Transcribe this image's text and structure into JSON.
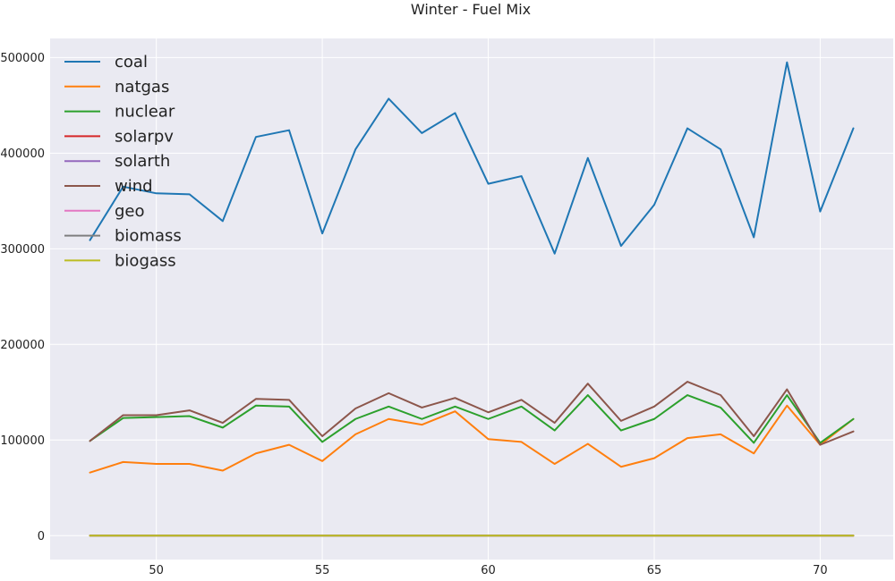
{
  "chart_data": {
    "type": "line",
    "title": "Winter - Fuel Mix",
    "xlabel": "",
    "ylabel": "",
    "xlim": [
      46.8,
      72.2
    ],
    "ylim": [
      -25000,
      520000
    ],
    "xticks": [
      50,
      55,
      60,
      65,
      70
    ],
    "yticks": [
      0,
      100000,
      200000,
      300000,
      400000,
      500000
    ],
    "grid": true,
    "legend_position": "top-left",
    "x": [
      48,
      49,
      50,
      51,
      52,
      53,
      54,
      55,
      56,
      57,
      58,
      59,
      60,
      61,
      62,
      63,
      64,
      65,
      66,
      67,
      68,
      69,
      70,
      71
    ],
    "series": [
      {
        "name": "coal",
        "color": "#1f77b4",
        "values": [
          309000,
          365000,
          358000,
          357000,
          329000,
          417000,
          424000,
          316000,
          404000,
          457000,
          421000,
          442000,
          368000,
          376000,
          295000,
          395000,
          303000,
          346000,
          426000,
          404000,
          312000,
          495000,
          339000,
          426000
        ]
      },
      {
        "name": "natgas",
        "color": "#ff7f0e",
        "values": [
          66000,
          77000,
          75000,
          75000,
          68000,
          86000,
          95000,
          78000,
          106000,
          122000,
          116000,
          130000,
          101000,
          98000,
          75000,
          96000,
          72000,
          81000,
          102000,
          106000,
          86000,
          136000,
          95000,
          122000
        ]
      },
      {
        "name": "nuclear",
        "color": "#2ca02c",
        "values": [
          99000,
          123000,
          124000,
          125000,
          113000,
          136000,
          135000,
          98000,
          122000,
          135000,
          122000,
          135000,
          122000,
          135000,
          110000,
          147000,
          110000,
          122000,
          147000,
          134000,
          97000,
          147000,
          97000,
          122000
        ]
      },
      {
        "name": "solarpv",
        "color": "#d62728",
        "values": [
          0,
          0,
          0,
          0,
          0,
          0,
          0,
          0,
          0,
          0,
          0,
          0,
          0,
          0,
          0,
          0,
          0,
          0,
          0,
          0,
          0,
          0,
          0,
          0
        ]
      },
      {
        "name": "solarth",
        "color": "#9467bd",
        "values": [
          0,
          0,
          0,
          0,
          0,
          0,
          0,
          0,
          0,
          0,
          0,
          0,
          0,
          0,
          0,
          0,
          0,
          0,
          0,
          0,
          0,
          0,
          0,
          0
        ]
      },
      {
        "name": "wind",
        "color": "#8c564b",
        "values": [
          99000,
          126000,
          126000,
          131000,
          118000,
          143000,
          142000,
          104000,
          133000,
          149000,
          134000,
          144000,
          129000,
          142000,
          118000,
          159000,
          120000,
          135000,
          161000,
          147000,
          104000,
          153000,
          95000,
          109000
        ]
      },
      {
        "name": "geo",
        "color": "#e377c2",
        "values": [
          0,
          0,
          0,
          0,
          0,
          0,
          0,
          0,
          0,
          0,
          0,
          0,
          0,
          0,
          0,
          0,
          0,
          0,
          0,
          0,
          0,
          0,
          0,
          0
        ]
      },
      {
        "name": "biomass",
        "color": "#7f7f7f",
        "values": [
          0,
          0,
          0,
          0,
          0,
          0,
          0,
          0,
          0,
          0,
          0,
          0,
          0,
          0,
          0,
          0,
          0,
          0,
          0,
          0,
          0,
          0,
          0,
          0
        ]
      },
      {
        "name": "biogass",
        "color": "#bcbd22",
        "values": [
          0,
          0,
          0,
          0,
          0,
          0,
          0,
          0,
          0,
          0,
          0,
          0,
          0,
          0,
          0,
          0,
          0,
          0,
          0,
          0,
          0,
          0,
          0,
          0
        ]
      }
    ]
  },
  "style": {
    "plot_background": "#eaeaf2",
    "grid_color": "#ffffff"
  }
}
